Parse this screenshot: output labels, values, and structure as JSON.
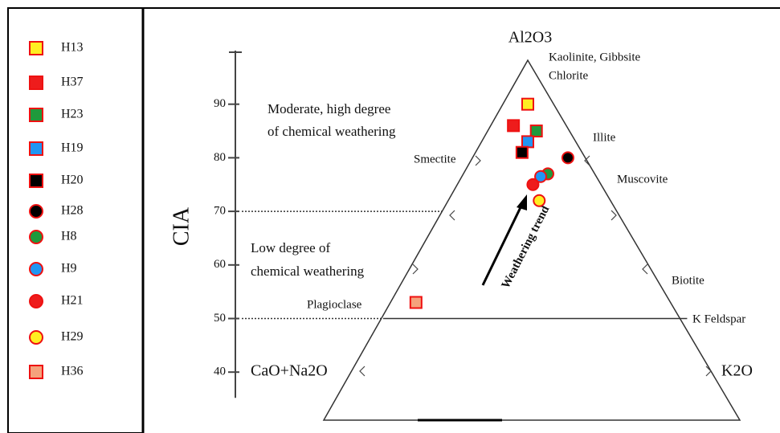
{
  "chart_data": {
    "type": "ternary",
    "y_label": "CIA",
    "ylim": [
      40,
      100
    ],
    "yticks": [
      40,
      50,
      60,
      70,
      80,
      90
    ],
    "guide_lines": [
      70,
      50
    ],
    "vertices": {
      "top": "Al2O3",
      "left": "CaO+Na2O",
      "right": "K2O"
    },
    "annotations": [
      "Kaolinite, Gibbsite",
      "Chlorite",
      "Moderate, high degree",
      "of chemical weathering",
      "Smectite",
      "Illite",
      "Muscovite",
      "Low degree of",
      "chemical weathering",
      "Plagioclase",
      "Biotite",
      "K Feldspar",
      "Weathering trend"
    ],
    "series": [
      {
        "name": "H13",
        "marker": "square",
        "color": "#ffee22",
        "x": [
          5
        ],
        "values": [
          90
        ]
      },
      {
        "name": "H37",
        "marker": "square",
        "color": "#ee1c1c",
        "x": [
          4.5
        ],
        "values": [
          86
        ]
      },
      {
        "name": "H23",
        "marker": "square",
        "color": "#1f9a3c",
        "x": [
          9
        ],
        "values": [
          85
        ]
      },
      {
        "name": "H19",
        "marker": "square",
        "color": "#2196f3",
        "x": [
          8.5
        ],
        "values": [
          83
        ]
      },
      {
        "name": "H20",
        "marker": "square",
        "color": "#000000",
        "x": [
          8.5
        ],
        "values": [
          81
        ]
      },
      {
        "name": "H28",
        "marker": "circle",
        "color": "#000000",
        "x": [
          17
        ],
        "values": [
          80
        ]
      },
      {
        "name": "H8",
        "marker": "circle",
        "color": "#1f9a3c",
        "x": [
          15
        ],
        "values": [
          77
        ]
      },
      {
        "name": "H9",
        "marker": "circle",
        "color": "#2196f3",
        "x": [
          14
        ],
        "values": [
          76.5
        ]
      },
      {
        "name": "H21",
        "marker": "circle",
        "color": "#ee1c1c",
        "x": [
          13.4
        ],
        "values": [
          75
        ]
      },
      {
        "name": "H29",
        "marker": "circle",
        "color": "#ffee22",
        "x": [
          16
        ],
        "values": [
          72
        ]
      },
      {
        "name": "H36",
        "marker": "square",
        "color": "#f5a27c",
        "x": [
          4
        ],
        "values": [
          53
        ]
      }
    ]
  }
}
